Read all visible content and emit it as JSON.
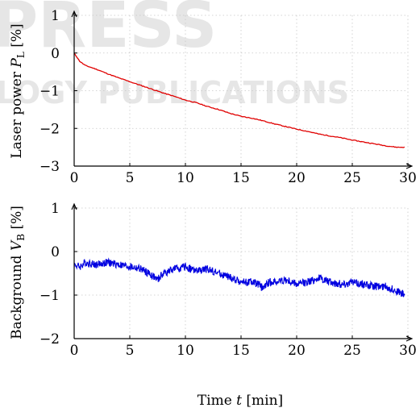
{
  "watermark": {
    "top_text": "PRESS",
    "middle_text": "LOGY PUBLICATIONS"
  },
  "chart_data": [
    {
      "type": "line",
      "title": "",
      "xlabel": "",
      "ylabel": "Laser power P_L [%]",
      "ylabel_parts": {
        "prefix": "Laser power ",
        "symbol": "P",
        "sub": "L",
        "suffix": " [%]"
      },
      "xlim": [
        0,
        30
      ],
      "ylim": [
        -3,
        1
      ],
      "xticks": [
        0,
        5,
        10,
        15,
        20,
        25,
        30
      ],
      "yticks": [
        1,
        0,
        -1,
        -2,
        -3
      ],
      "grid": true,
      "color": "#e00000",
      "series": [
        {
          "x": [
            0,
            0.5,
            1,
            2,
            3,
            4,
            5,
            6,
            7,
            8,
            9,
            10,
            11,
            12,
            13,
            14,
            15,
            16,
            17,
            18,
            19,
            20,
            21,
            22,
            23,
            24,
            25,
            26,
            27,
            28,
            29,
            29.7
          ],
          "values": [
            0,
            -0.22,
            -0.33,
            -0.43,
            -0.55,
            -0.66,
            -0.76,
            -0.86,
            -0.96,
            -1.06,
            -1.15,
            -1.25,
            -1.32,
            -1.42,
            -1.5,
            -1.6,
            -1.68,
            -1.73,
            -1.8,
            -1.88,
            -1.95,
            -2.02,
            -2.08,
            -2.15,
            -2.2,
            -2.25,
            -2.31,
            -2.36,
            -2.41,
            -2.46,
            -2.5,
            -2.5
          ]
        }
      ]
    },
    {
      "type": "line",
      "title": "",
      "xlabel": "Time t [min]",
      "xlabel_parts": {
        "prefix": "Time ",
        "symbol": "t",
        "suffix": " [min]"
      },
      "ylabel": "Background V_B [%]",
      "ylabel_parts": {
        "prefix": "Background ",
        "symbol": "V",
        "sub": "B",
        "suffix": " [%]"
      },
      "xlim": [
        0,
        30
      ],
      "ylim": [
        -2,
        1
      ],
      "xticks": [
        0,
        5,
        10,
        15,
        20,
        25,
        30
      ],
      "yticks": [
        1,
        0,
        -1,
        -2
      ],
      "grid": true,
      "color": "#0000e0",
      "noise_amplitude": 0.09,
      "series": [
        {
          "x": [
            0,
            0.5,
            1,
            2,
            3,
            4,
            5,
            6,
            7,
            7.5,
            8,
            9,
            10,
            11,
            12,
            13,
            14,
            15,
            16,
            16.5,
            17,
            17.5,
            18,
            19,
            20,
            21,
            22,
            23,
            24,
            25,
            26,
            27,
            28,
            29,
            29.7
          ],
          "values": [
            -0.3,
            -0.35,
            -0.25,
            -0.3,
            -0.25,
            -0.3,
            -0.35,
            -0.4,
            -0.55,
            -0.65,
            -0.5,
            -0.4,
            -0.35,
            -0.45,
            -0.4,
            -0.5,
            -0.6,
            -0.7,
            -0.7,
            -0.75,
            -0.85,
            -0.7,
            -0.7,
            -0.65,
            -0.75,
            -0.7,
            -0.6,
            -0.7,
            -0.75,
            -0.7,
            -0.75,
            -0.8,
            -0.8,
            -0.9,
            -1.0
          ]
        }
      ]
    }
  ]
}
